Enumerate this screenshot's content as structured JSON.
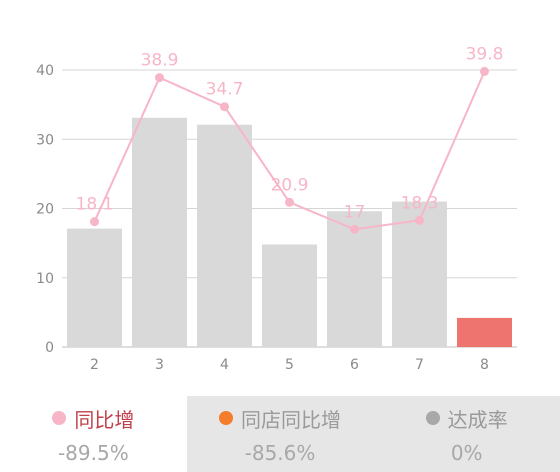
{
  "chart_data": {
    "type": "bar",
    "categories": [
      "2",
      "3",
      "4",
      "5",
      "6",
      "7",
      "8"
    ],
    "series": [
      {
        "type": "bar",
        "values": [
          17.1,
          33.1,
          32.1,
          14.8,
          19.6,
          21.0,
          4.2
        ],
        "color": "#d9d9d9",
        "highlight_index": 6,
        "highlight_color": "#ee7470"
      },
      {
        "type": "line",
        "values": [
          18.1,
          38.9,
          34.7,
          20.9,
          17,
          18.3,
          39.8
        ],
        "labels": [
          "18.1",
          "38.9",
          "34.7",
          "20.9",
          "17",
          "18.3",
          "39.8"
        ],
        "color": "#f7b6c8"
      }
    ],
    "yticks": [
      "0",
      "10",
      "20",
      "30",
      "40"
    ],
    "ylim": [
      0,
      40
    ],
    "grid": true
  },
  "tabs": [
    {
      "label": "同比增",
      "value": "-89.5%",
      "dot_color": "#f7b6c8"
    },
    {
      "label": "同店同比增",
      "value": "-85.6%",
      "dot_color": "#f57c2b"
    },
    {
      "label": "达成率",
      "value": "0%",
      "dot_color": "#a8a8a8"
    }
  ]
}
